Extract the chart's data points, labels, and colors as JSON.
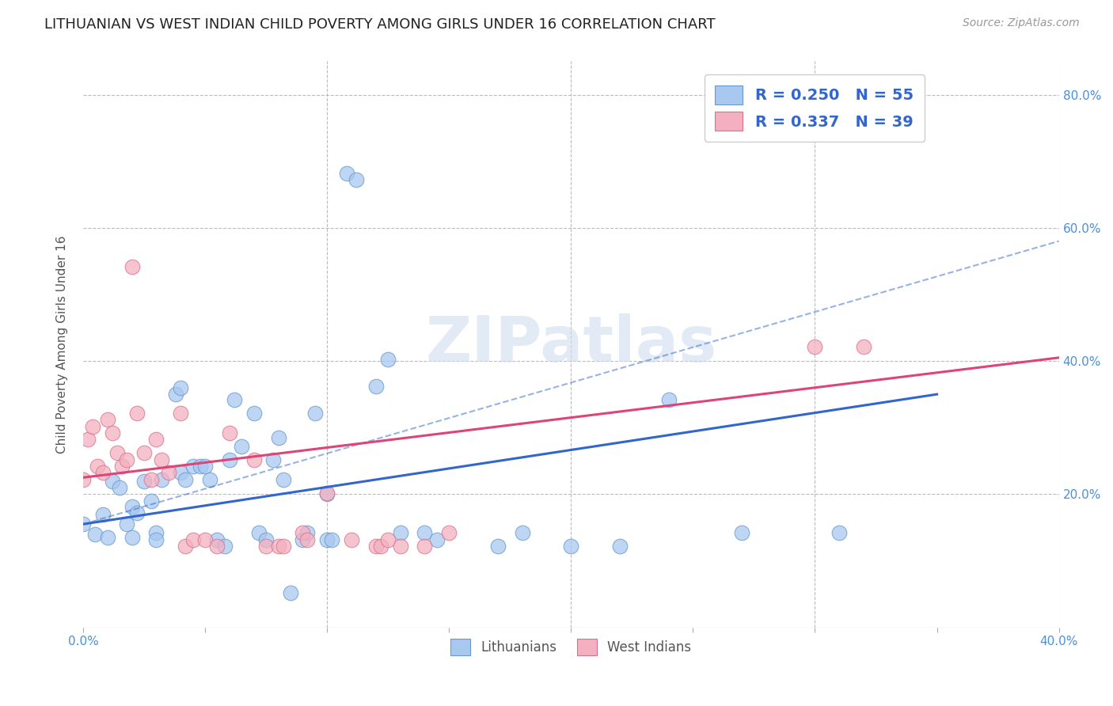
{
  "title": "LITHUANIAN VS WEST INDIAN CHILD POVERTY AMONG GIRLS UNDER 16 CORRELATION CHART",
  "source": "Source: ZipAtlas.com",
  "ylabel": "Child Poverty Among Girls Under 16",
  "xlim": [
    0.0,
    0.4
  ],
  "ylim": [
    0.0,
    0.85
  ],
  "x_ticks": [
    0.0,
    0.05,
    0.1,
    0.15,
    0.2,
    0.25,
    0.3,
    0.35,
    0.4
  ],
  "y_ticks": [
    0.0,
    0.2,
    0.4,
    0.6,
    0.8
  ],
  "legend_label_blue": "Lithuanians",
  "legend_label_pink": "West Indians",
  "blue_color": "#A8C8F0",
  "blue_edge_color": "#6699CC",
  "pink_color": "#F4B0C0",
  "pink_edge_color": "#D97090",
  "blue_line_color": "#3366CC",
  "pink_line_color": "#DD4477",
  "blue_scatter": [
    [
      0.0,
      0.155
    ],
    [
      0.005,
      0.14
    ],
    [
      0.008,
      0.17
    ],
    [
      0.01,
      0.135
    ],
    [
      0.012,
      0.22
    ],
    [
      0.015,
      0.21
    ],
    [
      0.018,
      0.155
    ],
    [
      0.02,
      0.135
    ],
    [
      0.02,
      0.182
    ],
    [
      0.022,
      0.172
    ],
    [
      0.025,
      0.22
    ],
    [
      0.028,
      0.19
    ],
    [
      0.03,
      0.142
    ],
    [
      0.03,
      0.132
    ],
    [
      0.032,
      0.222
    ],
    [
      0.038,
      0.35
    ],
    [
      0.04,
      0.36
    ],
    [
      0.04,
      0.232
    ],
    [
      0.042,
      0.222
    ],
    [
      0.045,
      0.242
    ],
    [
      0.048,
      0.242
    ],
    [
      0.05,
      0.242
    ],
    [
      0.052,
      0.222
    ],
    [
      0.055,
      0.132
    ],
    [
      0.058,
      0.122
    ],
    [
      0.06,
      0.252
    ],
    [
      0.062,
      0.342
    ],
    [
      0.065,
      0.272
    ],
    [
      0.07,
      0.322
    ],
    [
      0.072,
      0.142
    ],
    [
      0.075,
      0.132
    ],
    [
      0.078,
      0.252
    ],
    [
      0.08,
      0.285
    ],
    [
      0.082,
      0.222
    ],
    [
      0.085,
      0.052
    ],
    [
      0.09,
      0.132
    ],
    [
      0.092,
      0.142
    ],
    [
      0.095,
      0.322
    ],
    [
      0.1,
      0.2
    ],
    [
      0.1,
      0.132
    ],
    [
      0.102,
      0.132
    ],
    [
      0.108,
      0.682
    ],
    [
      0.112,
      0.672
    ],
    [
      0.12,
      0.362
    ],
    [
      0.125,
      0.402
    ],
    [
      0.13,
      0.142
    ],
    [
      0.14,
      0.142
    ],
    [
      0.145,
      0.132
    ],
    [
      0.17,
      0.122
    ],
    [
      0.18,
      0.142
    ],
    [
      0.2,
      0.122
    ],
    [
      0.22,
      0.122
    ],
    [
      0.24,
      0.342
    ],
    [
      0.27,
      0.142
    ],
    [
      0.31,
      0.142
    ]
  ],
  "pink_scatter": [
    [
      0.0,
      0.222
    ],
    [
      0.002,
      0.282
    ],
    [
      0.004,
      0.302
    ],
    [
      0.006,
      0.242
    ],
    [
      0.008,
      0.232
    ],
    [
      0.01,
      0.312
    ],
    [
      0.012,
      0.292
    ],
    [
      0.014,
      0.262
    ],
    [
      0.016,
      0.242
    ],
    [
      0.018,
      0.252
    ],
    [
      0.02,
      0.542
    ],
    [
      0.022,
      0.322
    ],
    [
      0.025,
      0.262
    ],
    [
      0.028,
      0.222
    ],
    [
      0.03,
      0.282
    ],
    [
      0.032,
      0.252
    ],
    [
      0.035,
      0.232
    ],
    [
      0.04,
      0.322
    ],
    [
      0.042,
      0.122
    ],
    [
      0.045,
      0.132
    ],
    [
      0.05,
      0.132
    ],
    [
      0.055,
      0.122
    ],
    [
      0.06,
      0.292
    ],
    [
      0.07,
      0.252
    ],
    [
      0.075,
      0.122
    ],
    [
      0.08,
      0.122
    ],
    [
      0.082,
      0.122
    ],
    [
      0.09,
      0.142
    ],
    [
      0.092,
      0.132
    ],
    [
      0.1,
      0.202
    ],
    [
      0.11,
      0.132
    ],
    [
      0.12,
      0.122
    ],
    [
      0.122,
      0.122
    ],
    [
      0.125,
      0.132
    ],
    [
      0.13,
      0.122
    ],
    [
      0.14,
      0.122
    ],
    [
      0.15,
      0.142
    ],
    [
      0.3,
      0.422
    ],
    [
      0.32,
      0.422
    ]
  ],
  "blue_trend_x": [
    0.0,
    0.35
  ],
  "blue_trend_y": [
    0.155,
    0.35
  ],
  "pink_trend_x": [
    0.0,
    0.4
  ],
  "pink_trend_y": [
    0.225,
    0.405
  ],
  "watermark": "ZIPatlas",
  "background_color": "#FFFFFF",
  "grid_color": "#BBBBBB",
  "title_fontsize": 13,
  "axis_label_fontsize": 11,
  "tick_fontsize": 11,
  "legend_fontsize": 14
}
